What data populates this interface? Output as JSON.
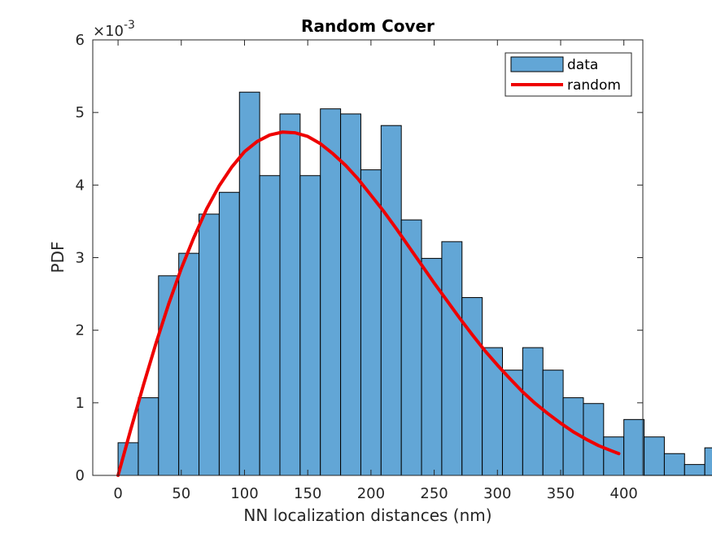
{
  "chart_data": {
    "type": "bar",
    "title": "Random Cover",
    "xlabel": "NN localization distances (nm)",
    "ylabel": "PDF",
    "exponent_label": "×10",
    "exponent_power": "-3",
    "xlim": [
      -20,
      415
    ],
    "ylim": [
      0,
      0.006
    ],
    "xticks": [
      0,
      50,
      100,
      150,
      200,
      250,
      300,
      350,
      400
    ],
    "yticks": [
      0,
      0.001,
      0.002,
      0.003,
      0.004,
      0.005,
      0.006
    ],
    "ytick_labels": [
      "0",
      "1",
      "2",
      "3",
      "4",
      "5",
      "6"
    ],
    "bin_width": 16,
    "bin_start": 0,
    "bar_color": "#62a6d6",
    "bar_edge_color": "#000000",
    "line_color": "#ee0000",
    "legend": {
      "placement": "top-right",
      "entries": [
        "data",
        "random"
      ]
    },
    "series": [
      {
        "name": "data",
        "kind": "histogram",
        "values": [
          0.00045,
          0.00107,
          0.00275,
          0.00306,
          0.0036,
          0.0039,
          0.00528,
          0.00413,
          0.00498,
          0.00413,
          0.00505,
          0.00498,
          0.00421,
          0.00482,
          0.00352,
          0.00299,
          0.00322,
          0.00245,
          0.00176,
          0.00145,
          0.00176,
          0.00145,
          0.00107,
          0.00099,
          0.00053,
          0.00077,
          0.00053,
          0.0003,
          0.00015,
          0.00038
        ]
      },
      {
        "name": "random",
        "kind": "line",
        "x": [
          0,
          10,
          20,
          30,
          40,
          50,
          60,
          70,
          80,
          90,
          100,
          110,
          120,
          130,
          140,
          150,
          160,
          170,
          180,
          190,
          200,
          210,
          220,
          230,
          240,
          250,
          260,
          270,
          280,
          290,
          300,
          310,
          320,
          330,
          340,
          350,
          360,
          370,
          380,
          390,
          396
        ],
        "y": [
          0,
          0.00063,
          0.00124,
          0.00182,
          0.00236,
          0.00285,
          0.00328,
          0.00367,
          0.00399,
          0.00425,
          0.00446,
          0.0046,
          0.00469,
          0.00473,
          0.00472,
          0.00467,
          0.00457,
          0.00443,
          0.00427,
          0.00408,
          0.00386,
          0.00364,
          0.0034,
          0.00315,
          0.0029,
          0.00265,
          0.00241,
          0.00217,
          0.00194,
          0.00172,
          0.00152,
          0.00133,
          0.00115,
          0.00099,
          0.00085,
          0.00072,
          0.0006,
          0.0005,
          0.00041,
          0.00034,
          0.0003
        ]
      }
    ]
  }
}
